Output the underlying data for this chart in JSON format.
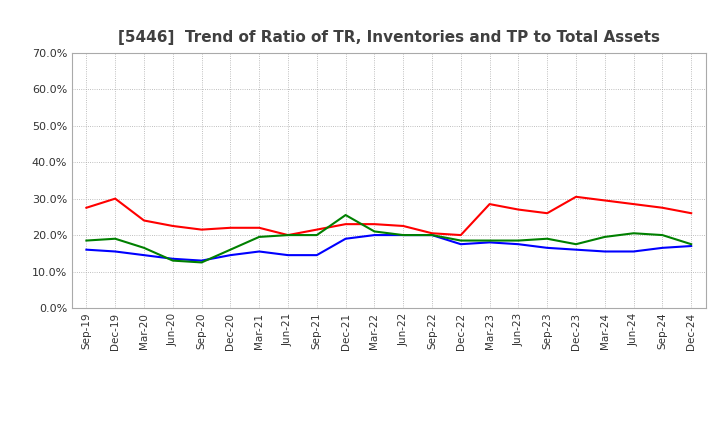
{
  "title": "[5446]  Trend of Ratio of TR, Inventories and TP to Total Assets",
  "x_labels": [
    "Sep-19",
    "Dec-19",
    "Mar-20",
    "Jun-20",
    "Sep-20",
    "Dec-20",
    "Mar-21",
    "Jun-21",
    "Sep-21",
    "Dec-21",
    "Mar-22",
    "Jun-22",
    "Sep-22",
    "Dec-22",
    "Mar-23",
    "Jun-23",
    "Sep-23",
    "Dec-23",
    "Mar-24",
    "Jun-24",
    "Sep-24",
    "Dec-24"
  ],
  "trade_receivables": [
    0.275,
    0.3,
    0.24,
    0.225,
    0.215,
    0.22,
    0.22,
    0.2,
    0.215,
    0.23,
    0.23,
    0.225,
    0.205,
    0.2,
    0.285,
    0.27,
    0.26,
    0.305,
    0.295,
    0.285,
    0.275,
    0.26
  ],
  "inventories": [
    0.16,
    0.155,
    0.145,
    0.135,
    0.13,
    0.145,
    0.155,
    0.145,
    0.145,
    0.19,
    0.2,
    0.2,
    0.2,
    0.175,
    0.18,
    0.175,
    0.165,
    0.16,
    0.155,
    0.155,
    0.165,
    0.17
  ],
  "trade_payables": [
    0.185,
    0.19,
    0.165,
    0.13,
    0.125,
    0.16,
    0.195,
    0.2,
    0.2,
    0.255,
    0.21,
    0.2,
    0.2,
    0.185,
    0.185,
    0.185,
    0.19,
    0.175,
    0.195,
    0.205,
    0.2,
    0.175
  ],
  "tr_color": "#ff0000",
  "inv_color": "#0000ff",
  "tp_color": "#008000",
  "ylim": [
    0.0,
    0.7
  ],
  "yticks": [
    0.0,
    0.1,
    0.2,
    0.3,
    0.4,
    0.5,
    0.6,
    0.7
  ],
  "bg_color": "#ffffff",
  "grid_color": "#aaaaaa",
  "title_color": "#404040"
}
